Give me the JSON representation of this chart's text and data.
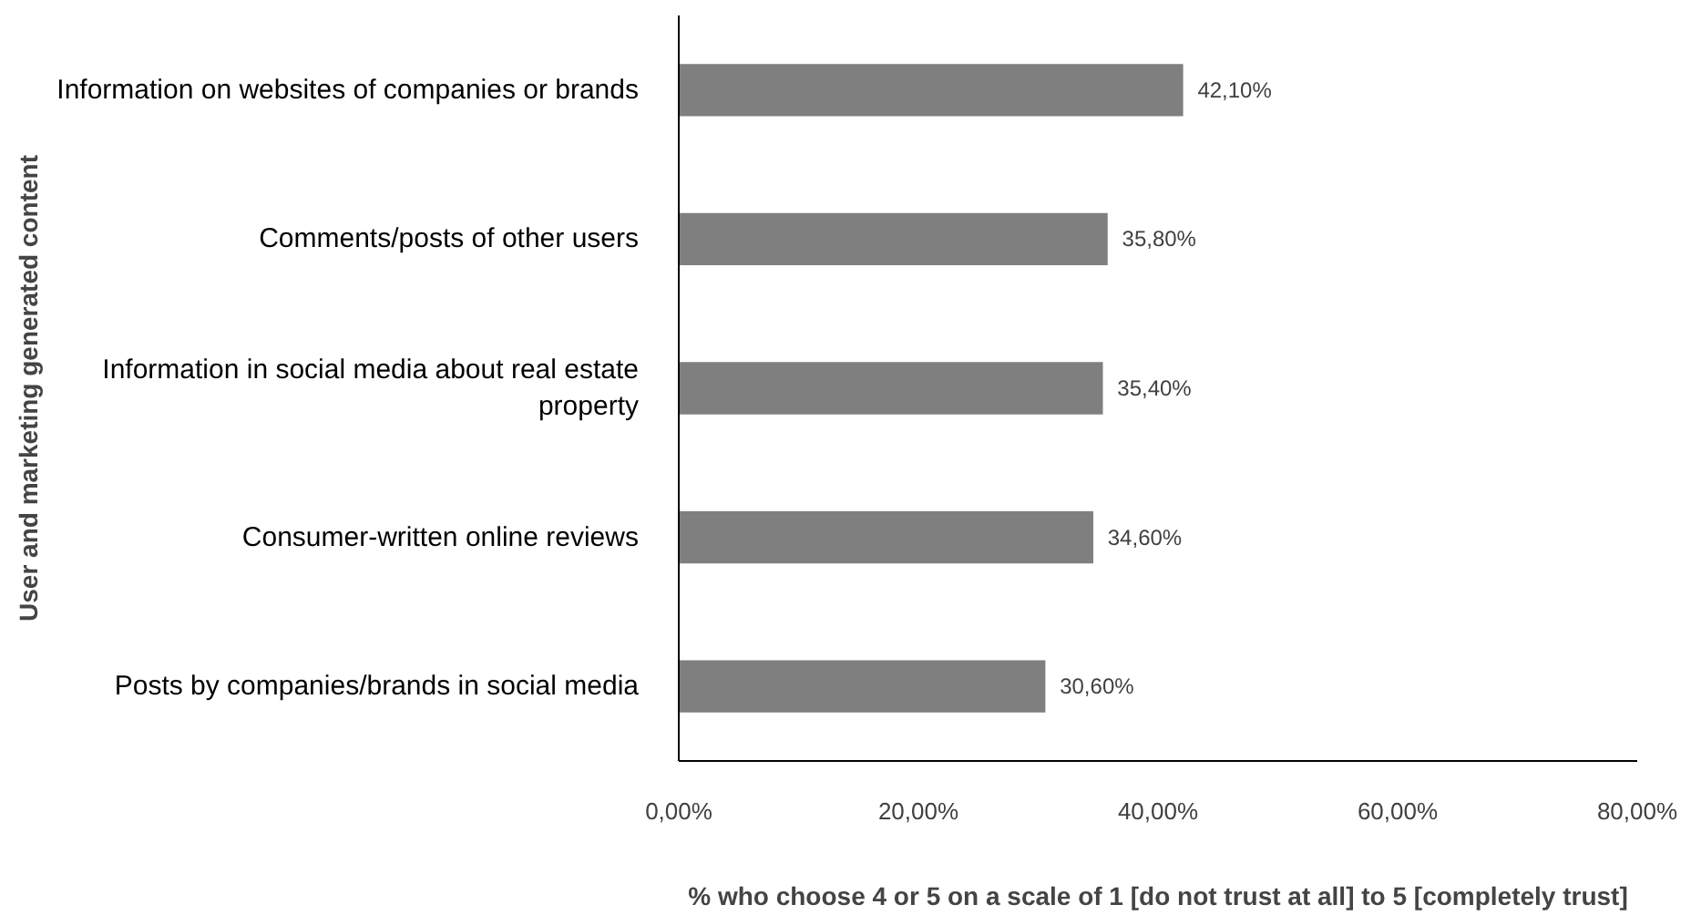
{
  "chart_data": {
    "type": "bar",
    "orientation": "horizontal",
    "xlabel": "% who choose 4 or 5 on a scale of 1 [do not trust at all] to 5 [completely trust]",
    "ylabel": "User and marketing generated content",
    "categories": [
      "Information on websites of companies or brands",
      "Comments/posts of other users",
      "Information in social media about real estate property",
      "Consumer-written online reviews",
      "Posts by companies/brands in social media"
    ],
    "values": [
      42.1,
      35.8,
      35.4,
      34.6,
      30.6
    ],
    "value_labels": [
      "42,10%",
      "35,80%",
      "35,40%",
      "34,60%",
      "30,60%"
    ],
    "color": "#7f7f7f",
    "xlim": [
      0,
      80
    ],
    "xticks": [
      {
        "value": 0,
        "label": "0,00%"
      },
      {
        "value": 20,
        "label": "20,00%"
      },
      {
        "value": 40,
        "label": "40,00%"
      },
      {
        "value": 60,
        "label": "60,00%"
      },
      {
        "value": 80,
        "label": "80,00%"
      }
    ],
    "grid": false
  }
}
